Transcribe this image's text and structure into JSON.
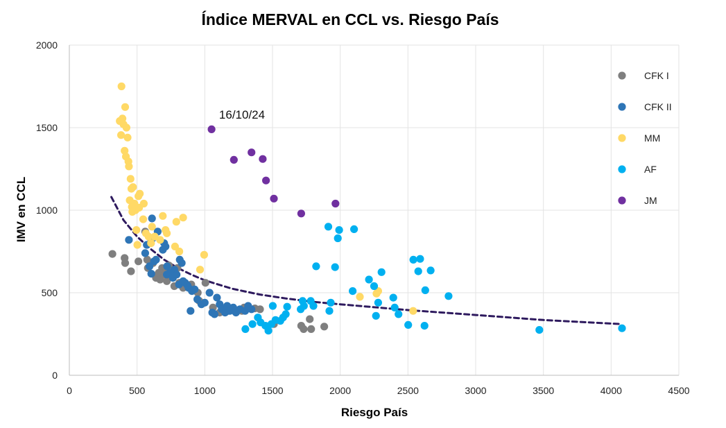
{
  "chart_data": {
    "type": "scatter",
    "title": "Índice MERVAL en CCL vs. Riesgo País",
    "xlabel": "Riesgo País",
    "ylabel": "IMV en CCL",
    "xlim": [
      0,
      4500
    ],
    "ylim": [
      0,
      2000
    ],
    "xticks": [
      0,
      500,
      1000,
      1500,
      2000,
      2500,
      3000,
      3500,
      4000,
      4500
    ],
    "yticks": [
      0,
      500,
      1000,
      1500,
      2000
    ],
    "grid": true,
    "legend": "right",
    "annotation": {
      "text": "16/10/24",
      "x": 1050,
      "y": 1490
    },
    "trendline": {
      "style": "dashed",
      "color": "#2e1a5e",
      "x": [
        310,
        400,
        500,
        600,
        700,
        800,
        900,
        1000,
        1200,
        1400,
        1600,
        1800,
        2000,
        2500,
        3000,
        3500,
        4080
      ],
      "y": [
        1080,
        940,
        840,
        765,
        700,
        650,
        610,
        575,
        525,
        490,
        465,
        445,
        430,
        395,
        365,
        335,
        310
      ]
    },
    "series": [
      {
        "name": "CFK I",
        "color": "#7f7f7f",
        "points": [
          [
            318,
            735
          ],
          [
            408,
            710
          ],
          [
            412,
            680
          ],
          [
            455,
            630
          ],
          [
            510,
            690
          ],
          [
            560,
            870
          ],
          [
            575,
            700
          ],
          [
            580,
            650
          ],
          [
            605,
            820
          ],
          [
            618,
            680
          ],
          [
            640,
            590
          ],
          [
            660,
            620
          ],
          [
            670,
            580
          ],
          [
            685,
            650
          ],
          [
            700,
            610
          ],
          [
            718,
            640
          ],
          [
            720,
            570
          ],
          [
            735,
            665
          ],
          [
            752,
            600
          ],
          [
            775,
            540
          ],
          [
            798,
            650
          ],
          [
            812,
            560
          ],
          [
            840,
            530
          ],
          [
            875,
            540
          ],
          [
            900,
            550
          ],
          [
            948,
            500
          ],
          [
            960,
            450
          ],
          [
            1005,
            560
          ],
          [
            1060,
            410
          ],
          [
            1110,
            380
          ],
          [
            1175,
            390
          ],
          [
            1210,
            395
          ],
          [
            1275,
            390
          ],
          [
            1290,
            410
          ],
          [
            1370,
            405
          ],
          [
            1408,
            400
          ],
          [
            1510,
            310
          ],
          [
            1712,
            300
          ],
          [
            1730,
            280
          ],
          [
            1775,
            340
          ],
          [
            1785,
            280
          ],
          [
            1882,
            295
          ]
        ]
      },
      {
        "name": "CFK II",
        "color": "#2e75b6",
        "points": [
          [
            440,
            820
          ],
          [
            560,
            740
          ],
          [
            572,
            790
          ],
          [
            592,
            660
          ],
          [
            605,
            615
          ],
          [
            610,
            950
          ],
          [
            615,
            830
          ],
          [
            625,
            690
          ],
          [
            640,
            700
          ],
          [
            652,
            870
          ],
          [
            690,
            760
          ],
          [
            700,
            800
          ],
          [
            710,
            780
          ],
          [
            720,
            610
          ],
          [
            722,
            660
          ],
          [
            742,
            620
          ],
          [
            765,
            590
          ],
          [
            775,
            640
          ],
          [
            792,
            610
          ],
          [
            810,
            550
          ],
          [
            815,
            700
          ],
          [
            830,
            680
          ],
          [
            840,
            570
          ],
          [
            855,
            560
          ],
          [
            872,
            545
          ],
          [
            880,
            530
          ],
          [
            895,
            390
          ],
          [
            905,
            510
          ],
          [
            925,
            520
          ],
          [
            945,
            460
          ],
          [
            975,
            430
          ],
          [
            1000,
            440
          ],
          [
            1035,
            500
          ],
          [
            1055,
            380
          ],
          [
            1072,
            370
          ],
          [
            1090,
            470
          ],
          [
            1110,
            430
          ],
          [
            1125,
            400
          ],
          [
            1150,
            380
          ],
          [
            1165,
            420
          ],
          [
            1185,
            390
          ],
          [
            1210,
            410
          ],
          [
            1230,
            380
          ],
          [
            1260,
            400
          ],
          [
            1298,
            390
          ],
          [
            1320,
            420
          ],
          [
            1345,
            400
          ]
        ]
      },
      {
        "name": "MM",
        "color": "#ffd966",
        "points": [
          [
            372,
            1540
          ],
          [
            382,
            1455
          ],
          [
            385,
            1750
          ],
          [
            392,
            1555
          ],
          [
            400,
            1520
          ],
          [
            408,
            1360
          ],
          [
            412,
            1625
          ],
          [
            418,
            1325
          ],
          [
            422,
            1500
          ],
          [
            430,
            1440
          ],
          [
            436,
            1295
          ],
          [
            440,
            1265
          ],
          [
            446,
            1060
          ],
          [
            452,
            1190
          ],
          [
            458,
            1130
          ],
          [
            462,
            1020
          ],
          [
            465,
            990
          ],
          [
            470,
            1140
          ],
          [
            480,
            1040
          ],
          [
            488,
            1000
          ],
          [
            495,
            880
          ],
          [
            502,
            790
          ],
          [
            510,
            1085
          ],
          [
            515,
            1015
          ],
          [
            520,
            1100
          ],
          [
            545,
            945
          ],
          [
            550,
            1040
          ],
          [
            565,
            860
          ],
          [
            585,
            840
          ],
          [
            603,
            800
          ],
          [
            610,
            900
          ],
          [
            630,
            840
          ],
          [
            670,
            820
          ],
          [
            690,
            965
          ],
          [
            710,
            880
          ],
          [
            720,
            860
          ],
          [
            780,
            780
          ],
          [
            790,
            930
          ],
          [
            812,
            750
          ],
          [
            840,
            955
          ],
          [
            965,
            640
          ],
          [
            995,
            730
          ],
          [
            2145,
            475
          ],
          [
            2268,
            495
          ],
          [
            2280,
            510
          ],
          [
            2538,
            390
          ]
        ]
      },
      {
        "name": "AF",
        "color": "#00b0f0",
        "points": [
          [
            1300,
            280
          ],
          [
            1352,
            310
          ],
          [
            1392,
            350
          ],
          [
            1412,
            320
          ],
          [
            1448,
            300
          ],
          [
            1470,
            270
          ],
          [
            1492,
            310
          ],
          [
            1502,
            420
          ],
          [
            1522,
            335
          ],
          [
            1558,
            330
          ],
          [
            1578,
            350
          ],
          [
            1598,
            370
          ],
          [
            1608,
            415
          ],
          [
            1708,
            400
          ],
          [
            1722,
            450
          ],
          [
            1732,
            420
          ],
          [
            1782,
            450
          ],
          [
            1802,
            420
          ],
          [
            1822,
            660
          ],
          [
            1912,
            900
          ],
          [
            1920,
            390
          ],
          [
            1930,
            440
          ],
          [
            1962,
            655
          ],
          [
            1982,
            830
          ],
          [
            1992,
            880
          ],
          [
            2092,
            510
          ],
          [
            2102,
            885
          ],
          [
            2212,
            580
          ],
          [
            2250,
            540
          ],
          [
            2264,
            360
          ],
          [
            2280,
            440
          ],
          [
            2305,
            625
          ],
          [
            2392,
            470
          ],
          [
            2402,
            410
          ],
          [
            2430,
            370
          ],
          [
            2502,
            305
          ],
          [
            2540,
            700
          ],
          [
            2576,
            630
          ],
          [
            2590,
            705
          ],
          [
            2622,
            300
          ],
          [
            2628,
            515
          ],
          [
            2668,
            635
          ],
          [
            2800,
            480
          ],
          [
            3470,
            275
          ],
          [
            4080,
            285
          ]
        ]
      },
      {
        "name": "JM",
        "color": "#7030a0",
        "points": [
          [
            1050,
            1490
          ],
          [
            1215,
            1305
          ],
          [
            1345,
            1350
          ],
          [
            1428,
            1310
          ],
          [
            1452,
            1180
          ],
          [
            1510,
            1070
          ],
          [
            1712,
            980
          ],
          [
            1965,
            1040
          ]
        ]
      }
    ]
  }
}
